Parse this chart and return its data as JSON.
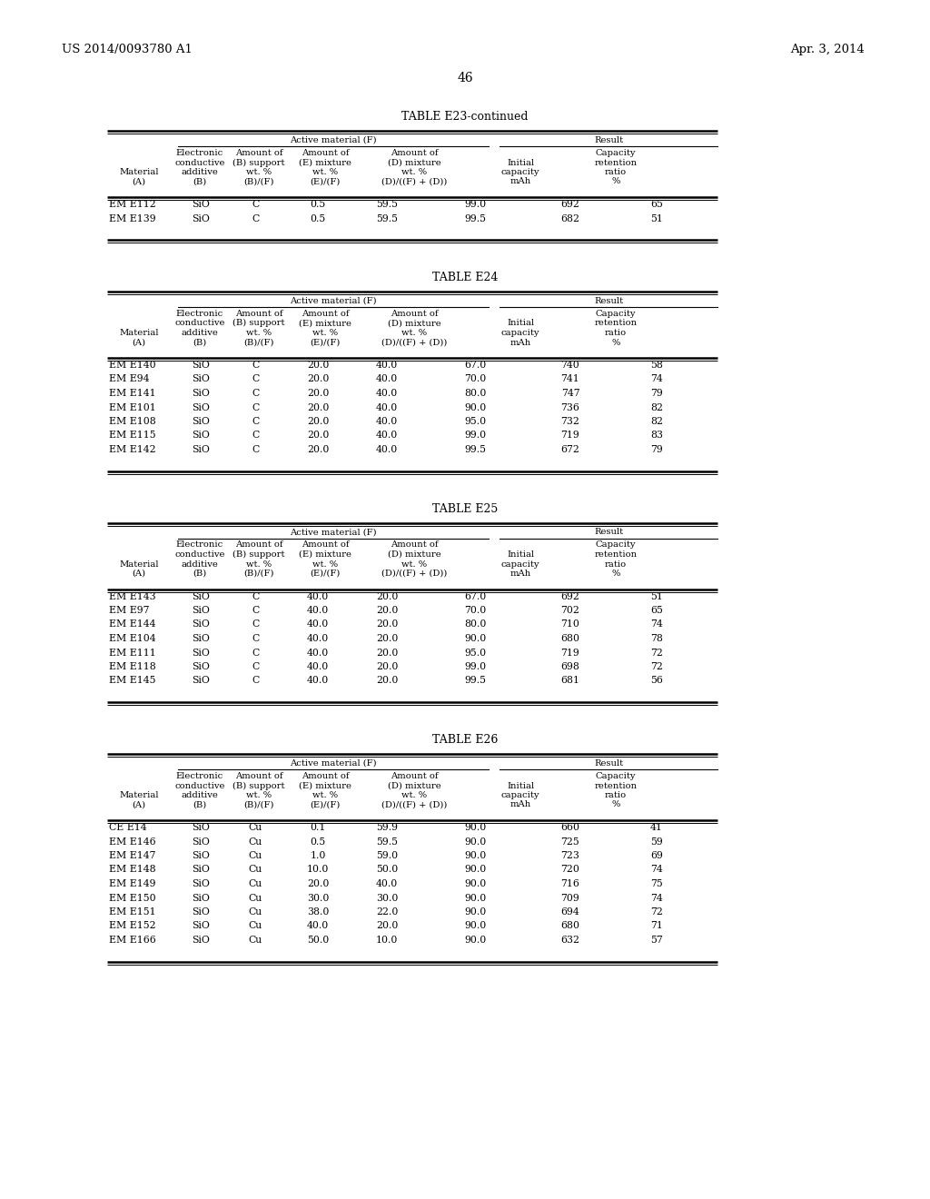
{
  "page_number": "46",
  "patent_left": "US 2014/0093780 A1",
  "patent_right": "Apr. 3, 2014",
  "background_color": "#ffffff",
  "tables": [
    {
      "title": "TABLE E23-continued",
      "group_header1": "Active material (F)",
      "group_header2": "Result",
      "rows": [
        [
          "EM E112",
          "SiO",
          "C",
          "0.5",
          "59.5",
          "99.0",
          "692",
          "65"
        ],
        [
          "EM E139",
          "SiO",
          "C",
          "0.5",
          "59.5",
          "99.5",
          "682",
          "51"
        ]
      ]
    },
    {
      "title": "TABLE E24",
      "group_header1": "Active material (F)",
      "group_header2": "Result",
      "rows": [
        [
          "EM E140",
          "SiO",
          "C",
          "20.0",
          "40.0",
          "67.0",
          "740",
          "58"
        ],
        [
          "EM E94",
          "SiO",
          "C",
          "20.0",
          "40.0",
          "70.0",
          "741",
          "74"
        ],
        [
          "EM E141",
          "SiO",
          "C",
          "20.0",
          "40.0",
          "80.0",
          "747",
          "79"
        ],
        [
          "EM E101",
          "SiO",
          "C",
          "20.0",
          "40.0",
          "90.0",
          "736",
          "82"
        ],
        [
          "EM E108",
          "SiO",
          "C",
          "20.0",
          "40.0",
          "95.0",
          "732",
          "82"
        ],
        [
          "EM E115",
          "SiO",
          "C",
          "20.0",
          "40.0",
          "99.0",
          "719",
          "83"
        ],
        [
          "EM E142",
          "SiO",
          "C",
          "20.0",
          "40.0",
          "99.5",
          "672",
          "79"
        ]
      ]
    },
    {
      "title": "TABLE E25",
      "group_header1": "Active material (F)",
      "group_header2": "Result",
      "rows": [
        [
          "EM E143",
          "SiO",
          "C",
          "40.0",
          "20.0",
          "67.0",
          "692",
          "51"
        ],
        [
          "EM E97",
          "SiO",
          "C",
          "40.0",
          "20.0",
          "70.0",
          "702",
          "65"
        ],
        [
          "EM E144",
          "SiO",
          "C",
          "40.0",
          "20.0",
          "80.0",
          "710",
          "74"
        ],
        [
          "EM E104",
          "SiO",
          "C",
          "40.0",
          "20.0",
          "90.0",
          "680",
          "78"
        ],
        [
          "EM E111",
          "SiO",
          "C",
          "40.0",
          "20.0",
          "95.0",
          "719",
          "72"
        ],
        [
          "EM E118",
          "SiO",
          "C",
          "40.0",
          "20.0",
          "99.0",
          "698",
          "72"
        ],
        [
          "EM E145",
          "SiO",
          "C",
          "40.0",
          "20.0",
          "99.5",
          "681",
          "56"
        ]
      ]
    },
    {
      "title": "TABLE E26",
      "group_header1": "Active material (F)",
      "group_header2": "Result",
      "rows": [
        [
          "CE E14",
          "SiO",
          "Cu",
          "0.1",
          "59.9",
          "90.0",
          "660",
          "41"
        ],
        [
          "EM E146",
          "SiO",
          "Cu",
          "0.5",
          "59.5",
          "90.0",
          "725",
          "59"
        ],
        [
          "EM E147",
          "SiO",
          "Cu",
          "1.0",
          "59.0",
          "90.0",
          "723",
          "69"
        ],
        [
          "EM E148",
          "SiO",
          "Cu",
          "10.0",
          "50.0",
          "90.0",
          "720",
          "74"
        ],
        [
          "EM E149",
          "SiO",
          "Cu",
          "20.0",
          "40.0",
          "90.0",
          "716",
          "75"
        ],
        [
          "EM E150",
          "SiO",
          "Cu",
          "30.0",
          "30.0",
          "90.0",
          "709",
          "74"
        ],
        [
          "EM E151",
          "SiO",
          "Cu",
          "38.0",
          "22.0",
          "90.0",
          "694",
          "72"
        ],
        [
          "EM E152",
          "SiO",
          "Cu",
          "40.0",
          "20.0",
          "90.0",
          "680",
          "71"
        ],
        [
          "EM E166",
          "SiO",
          "Cu",
          "50.0",
          "10.0",
          "90.0",
          "632",
          "57"
        ]
      ]
    }
  ]
}
